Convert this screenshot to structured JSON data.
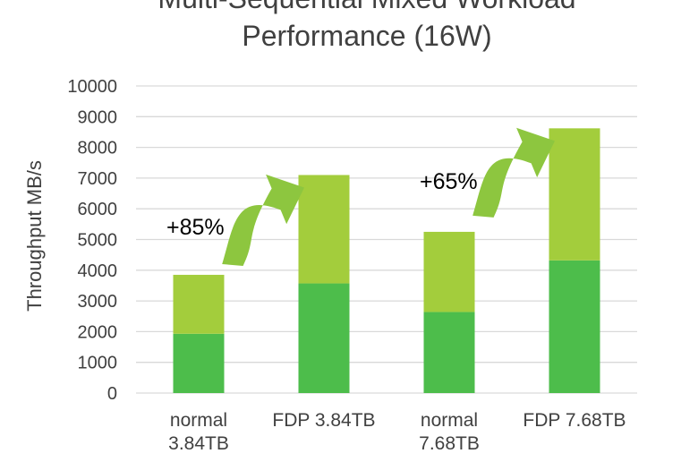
{
  "chart_data": {
    "type": "bar",
    "stacked": true,
    "title_lines": [
      "Multi-Sequential Mixed Workload",
      "Performance (16W)"
    ],
    "ylabel": "Throughput MB/s",
    "xlabel": "",
    "ylim": [
      0,
      10000
    ],
    "yticks": [
      "0",
      "1000",
      "2000",
      "3000",
      "4000",
      "5000",
      "6000",
      "7000",
      "8000",
      "9000",
      "10000"
    ],
    "grid": true,
    "legend": "none",
    "categories": [
      [
        "normal",
        "3.84TB"
      ],
      [
        "FDP 3.84TB"
      ],
      [
        "normal",
        "7.68TB"
      ],
      [
        "FDP 7.68TB"
      ]
    ],
    "series": [
      {
        "values": [
          1930,
          3570,
          2640,
          4320
        ]
      },
      {
        "values": [
          1920,
          3530,
          2610,
          4300
        ]
      }
    ],
    "annotations": [
      "+85%",
      "+65%"
    ],
    "colors": {
      "bottom": "#4DBD4B",
      "top": "#A3CD3C",
      "arrow": "#8DC63F",
      "grid": "#D9D9D9",
      "text": "#404040"
    }
  }
}
